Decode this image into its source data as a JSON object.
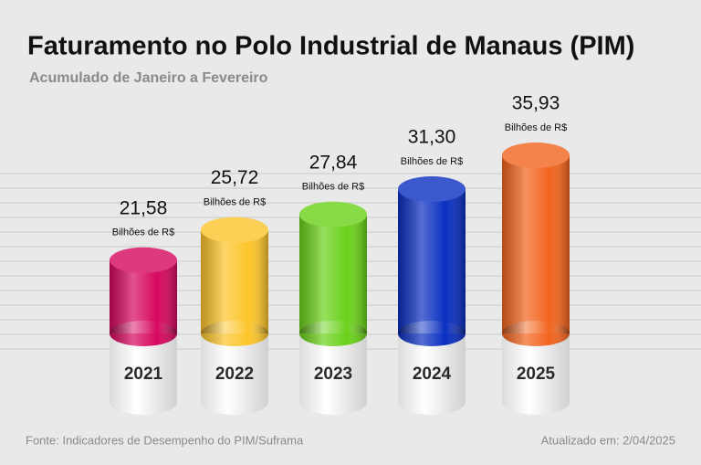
{
  "chart_data": {
    "type": "cylinder",
    "title": "Faturamento no Polo Industrial de Manaus (PIM)",
    "subtitle": "Acumulado de Janeiro a Fevereiro",
    "categories": [
      "2021",
      "2022",
      "2023",
      "2024",
      "2025"
    ],
    "values": [
      21.58,
      25.72,
      27.84,
      31.3,
      35.93
    ],
    "value_labels": [
      "21,58",
      "25,72",
      "27,84",
      "31,30",
      "35,93"
    ],
    "unit_label": "Bilhões de R$",
    "colors": [
      "#d6085e",
      "#fcc52a",
      "#6bd11a",
      "#0a2fc0",
      "#f2641e"
    ],
    "source": "Fonte: Indicadores de Desempenho do PIM/Suframa",
    "updated": "Atualizado em: 2/04/2025"
  }
}
